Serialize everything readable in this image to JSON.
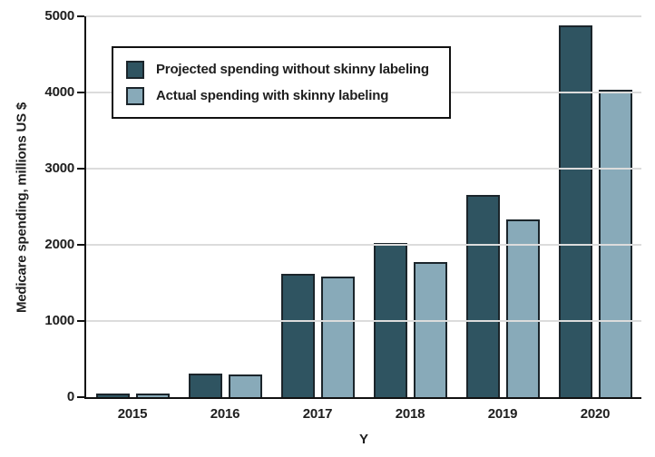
{
  "chart_data": {
    "type": "bar",
    "categories": [
      "2015",
      "2016",
      "2017",
      "2018",
      "2019",
      "2020"
    ],
    "series": [
      {
        "name": "Projected spending without skinny labeling",
        "color": "#2f5461",
        "values": [
          50,
          310,
          1620,
          2020,
          2650,
          4880
        ]
      },
      {
        "name": "Actual spending with skinny labeling",
        "color": "#88aab9",
        "values": [
          45,
          300,
          1580,
          1770,
          2330,
          4030
        ]
      }
    ],
    "xlabel": "Y",
    "ylabel": "Medicare spending, millions US $",
    "ylim": [
      0,
      5000
    ],
    "yticks": [
      0,
      1000,
      2000,
      3000,
      4000,
      5000
    ],
    "grid": true,
    "legend_position": "upper-left-inside",
    "colors": {
      "bar_border": "#1b252b",
      "gridline": "#dcdcdc",
      "axis": "#111111",
      "text": "#1e1e1e",
      "background": "#ffffff"
    }
  }
}
